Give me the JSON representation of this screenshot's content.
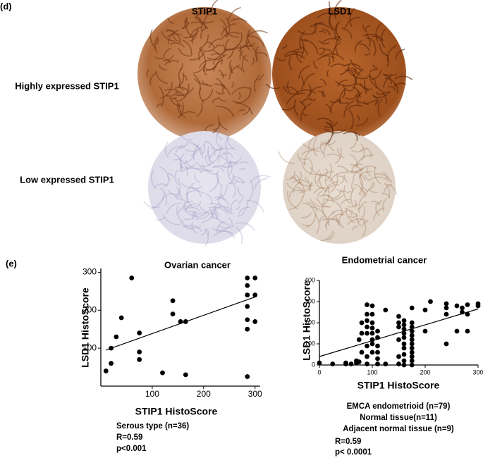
{
  "panel_labels": [
    "(d)",
    "(e)"
  ],
  "image_grid": {
    "columns": [
      "STIP1",
      "LSD1"
    ],
    "rows": [
      "Highly expressed STIP1",
      "Low expressed STIP1"
    ]
  },
  "chart_data": [
    {
      "type": "scatter",
      "title": "Ovarian cancer",
      "x_label": "STIP1 HistoScore",
      "y_label": "LSD1 HistoScore",
      "x": [
        10,
        20,
        20,
        30,
        40,
        60,
        75,
        75,
        75,
        120,
        140,
        140,
        155,
        165,
        165,
        285,
        285,
        285,
        285,
        285,
        285,
        285,
        300,
        300,
        300
      ],
      "values": [
        40,
        60,
        100,
        130,
        180,
        285,
        140,
        90,
        70,
        35,
        225,
        190,
        170,
        170,
        30,
        285,
        265,
        240,
        210,
        175,
        150,
        25,
        285,
        240,
        170
      ],
      "color": "#000000",
      "trend_line": {
        "x": [
          10,
          300
        ],
        "values": [
          95,
          235
        ]
      },
      "xlim": [
        0,
        310
      ],
      "ylim": [
        0,
        310
      ],
      "xticks": [
        100,
        200,
        300
      ],
      "yticks": [
        100,
        200,
        300
      ],
      "notes": [
        "Serous type (n=36)",
        "R=0.59",
        "p<0.001"
      ]
    },
    {
      "type": "scatter",
      "title": "Endometrial cancer",
      "x_label": "STIP1 HistoScore",
      "y_label": "LSD1 HistoScore",
      "x": [
        0,
        25,
        50,
        50,
        60,
        70,
        70,
        75,
        75,
        80,
        80,
        80,
        90,
        90,
        90,
        90,
        90,
        90,
        90,
        90,
        100,
        100,
        100,
        100,
        100,
        100,
        100,
        100,
        110,
        110,
        110,
        110,
        110,
        110,
        125,
        125,
        150,
        150,
        150,
        150,
        150,
        150,
        160,
        160,
        160,
        160,
        160,
        160,
        160,
        160,
        160,
        160,
        175,
        175,
        175,
        175,
        175,
        175,
        175,
        175,
        175,
        175,
        175,
        175,
        200,
        200,
        210,
        240,
        240,
        240,
        240,
        260,
        260,
        270,
        270,
        280,
        280,
        280,
        300,
        300
      ],
      "values": [
        10,
        5,
        5,
        10,
        5,
        10,
        20,
        15,
        120,
        60,
        150,
        200,
        5,
        40,
        90,
        150,
        180,
        210,
        240,
        285,
        60,
        100,
        120,
        150,
        175,
        200,
        240,
        280,
        5,
        30,
        60,
        90,
        130,
        160,
        5,
        260,
        5,
        40,
        120,
        180,
        200,
        230,
        0,
        20,
        50,
        80,
        100,
        130,
        150,
        170,
        190,
        210,
        0,
        20,
        40,
        60,
        80,
        100,
        120,
        140,
        160,
        180,
        200,
        270,
        160,
        260,
        300,
        100,
        240,
        270,
        290,
        160,
        280,
        250,
        270,
        160,
        240,
        285,
        280,
        290
      ],
      "color": "#000000",
      "trend_line": {
        "x": [
          0,
          300
        ],
        "values": [
          40,
          265
        ]
      },
      "xlim": [
        0,
        300
      ],
      "ylim": [
        0,
        400
      ],
      "xticks": [
        0,
        100,
        200,
        300
      ],
      "yticks": [
        0,
        100,
        200,
        300,
        400
      ],
      "notes": [
        "EMCA endometrioid (n=79)",
        "Normal tissue(n=11)",
        "Adjacent normal tissue (n=9)",
        "R=0.59",
        "p< 0.0001"
      ]
    }
  ]
}
